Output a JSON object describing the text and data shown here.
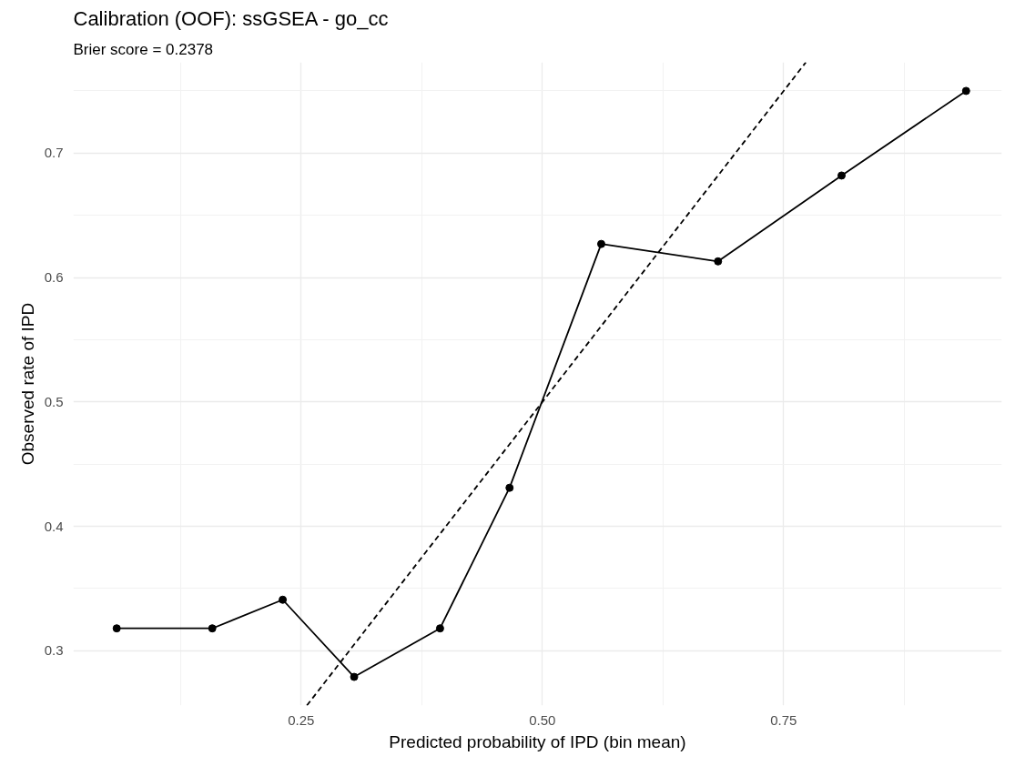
{
  "chart_data": {
    "type": "line",
    "title": "Calibration (OOF): ssGSEA - go_cc",
    "subtitle": "Brier score = 0.2378",
    "xlabel": "Predicted probability of IPD (bin mean)",
    "ylabel": "Observed rate of IPD",
    "series": [
      {
        "color": "#000000",
        "marker": "circle",
        "line_style": "solid",
        "x": [
          0.059,
          0.158,
          0.231,
          0.305,
          0.394,
          0.466,
          0.561,
          0.682,
          0.81,
          0.939
        ],
        "values": [
          0.318,
          0.318,
          0.341,
          0.279,
          0.318,
          0.431,
          0.627,
          0.613,
          0.682,
          0.75
        ]
      },
      {
        "color": "#000000",
        "marker": "none",
        "line_style": "dashed",
        "x": [
          0.256,
          0.773
        ],
        "values": [
          0.256,
          0.773
        ]
      }
    ],
    "xlim": [
      0.014,
      0.976
    ],
    "ylim": [
      0.256,
      0.773
    ],
    "xticks": [
      {
        "value": 0.25,
        "label": "0.25"
      },
      {
        "value": 0.5,
        "label": "0.50"
      },
      {
        "value": 0.75,
        "label": "0.75"
      }
    ],
    "yticks": [
      0.3,
      0.4,
      0.5,
      0.6,
      0.7
    ],
    "grid": true
  }
}
